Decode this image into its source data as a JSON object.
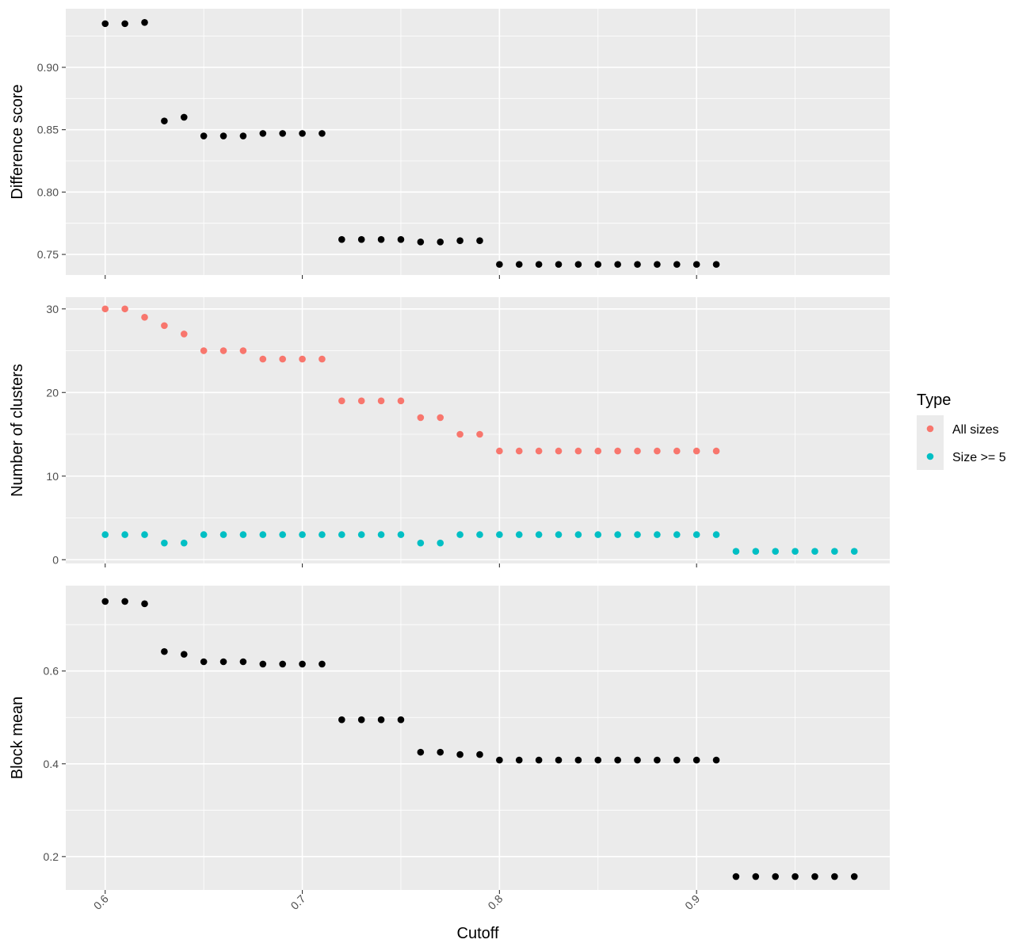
{
  "xlabel": "Cutoff",
  "x_ticks": [
    "0.6",
    "0.7",
    "0.8",
    "0.9"
  ],
  "legend": {
    "title": "Type",
    "items": [
      {
        "label": "All sizes",
        "color": "#F8766D"
      },
      {
        "label": "Size >= 5",
        "color": "#00BFC4"
      }
    ]
  },
  "chart_data": [
    {
      "type": "scatter",
      "ylabel": "Difference score",
      "y_ticks": [
        "0.75",
        "0.80",
        "0.85",
        "0.90"
      ],
      "xlim": [
        0.58,
        0.998
      ],
      "ylim": [
        0.7335,
        0.947
      ],
      "grid": true,
      "series": [
        {
          "color": "#000000",
          "x": [
            0.6,
            0.61,
            0.62,
            0.63,
            0.64,
            0.65,
            0.66,
            0.67,
            0.68,
            0.69,
            0.7,
            0.71,
            0.72,
            0.73,
            0.74,
            0.75,
            0.76,
            0.77,
            0.78,
            0.79,
            0.8,
            0.81,
            0.82,
            0.83,
            0.84,
            0.85,
            0.86,
            0.87,
            0.88,
            0.89,
            0.9,
            0.91
          ],
          "y": [
            0.935,
            0.935,
            0.936,
            0.857,
            0.86,
            0.845,
            0.845,
            0.845,
            0.847,
            0.847,
            0.847,
            0.847,
            0.762,
            0.762,
            0.762,
            0.762,
            0.76,
            0.76,
            0.761,
            0.761,
            0.742,
            0.742,
            0.742,
            0.742,
            0.742,
            0.742,
            0.742,
            0.742,
            0.742,
            0.742,
            0.742,
            0.742
          ]
        }
      ]
    },
    {
      "type": "scatter",
      "ylabel": "Number of clusters",
      "y_ticks": [
        "0",
        "10",
        "20",
        "30"
      ],
      "xlim": [
        0.58,
        0.998
      ],
      "ylim": [
        -0.45,
        31.4
      ],
      "grid": true,
      "series": [
        {
          "name": "All sizes",
          "color": "#F8766D",
          "x": [
            0.6,
            0.61,
            0.62,
            0.63,
            0.64,
            0.65,
            0.66,
            0.67,
            0.68,
            0.69,
            0.7,
            0.71,
            0.72,
            0.73,
            0.74,
            0.75,
            0.76,
            0.77,
            0.78,
            0.79,
            0.8,
            0.81,
            0.82,
            0.83,
            0.84,
            0.85,
            0.86,
            0.87,
            0.88,
            0.89,
            0.9,
            0.91
          ],
          "y": [
            30,
            30,
            29,
            28,
            27,
            25,
            25,
            25,
            24,
            24,
            24,
            24,
            19,
            19,
            19,
            19,
            17,
            17,
            15,
            15,
            13,
            13,
            13,
            13,
            13,
            13,
            13,
            13,
            13,
            13,
            13,
            13
          ]
        },
        {
          "name": "Size >= 5",
          "color": "#00BFC4",
          "x": [
            0.6,
            0.61,
            0.62,
            0.63,
            0.64,
            0.65,
            0.66,
            0.67,
            0.68,
            0.69,
            0.7,
            0.71,
            0.72,
            0.73,
            0.74,
            0.75,
            0.76,
            0.77,
            0.78,
            0.79,
            0.8,
            0.81,
            0.82,
            0.83,
            0.84,
            0.85,
            0.86,
            0.87,
            0.88,
            0.89,
            0.9,
            0.91,
            0.92,
            0.93,
            0.94,
            0.95,
            0.96,
            0.97,
            0.98
          ],
          "y": [
            3,
            3,
            3,
            2,
            2,
            3,
            3,
            3,
            3,
            3,
            3,
            3,
            3,
            3,
            3,
            3,
            2,
            2,
            3,
            3,
            3,
            3,
            3,
            3,
            3,
            3,
            3,
            3,
            3,
            3,
            3,
            3,
            1,
            1,
            1,
            1,
            1,
            1,
            1
          ]
        }
      ]
    },
    {
      "type": "scatter",
      "ylabel": "Block mean",
      "y_ticks": [
        "0.2",
        "0.4",
        "0.6"
      ],
      "xlim": [
        0.58,
        0.998
      ],
      "ylim": [
        0.128,
        0.784
      ],
      "grid": true,
      "series": [
        {
          "color": "#000000",
          "x": [
            0.6,
            0.61,
            0.62,
            0.63,
            0.64,
            0.65,
            0.66,
            0.67,
            0.68,
            0.69,
            0.7,
            0.71,
            0.72,
            0.73,
            0.74,
            0.75,
            0.76,
            0.77,
            0.78,
            0.79,
            0.8,
            0.81,
            0.82,
            0.83,
            0.84,
            0.85,
            0.86,
            0.87,
            0.88,
            0.89,
            0.9,
            0.91,
            0.92,
            0.93,
            0.94,
            0.95,
            0.96,
            0.97,
            0.98
          ],
          "y": [
            0.75,
            0.75,
            0.745,
            0.642,
            0.636,
            0.62,
            0.62,
            0.62,
            0.615,
            0.615,
            0.615,
            0.615,
            0.495,
            0.495,
            0.495,
            0.495,
            0.425,
            0.425,
            0.42,
            0.42,
            0.408,
            0.408,
            0.408,
            0.408,
            0.408,
            0.408,
            0.408,
            0.408,
            0.408,
            0.408,
            0.408,
            0.408,
            0.157,
            0.157,
            0.157,
            0.157,
            0.157,
            0.157,
            0.157
          ]
        }
      ]
    }
  ]
}
